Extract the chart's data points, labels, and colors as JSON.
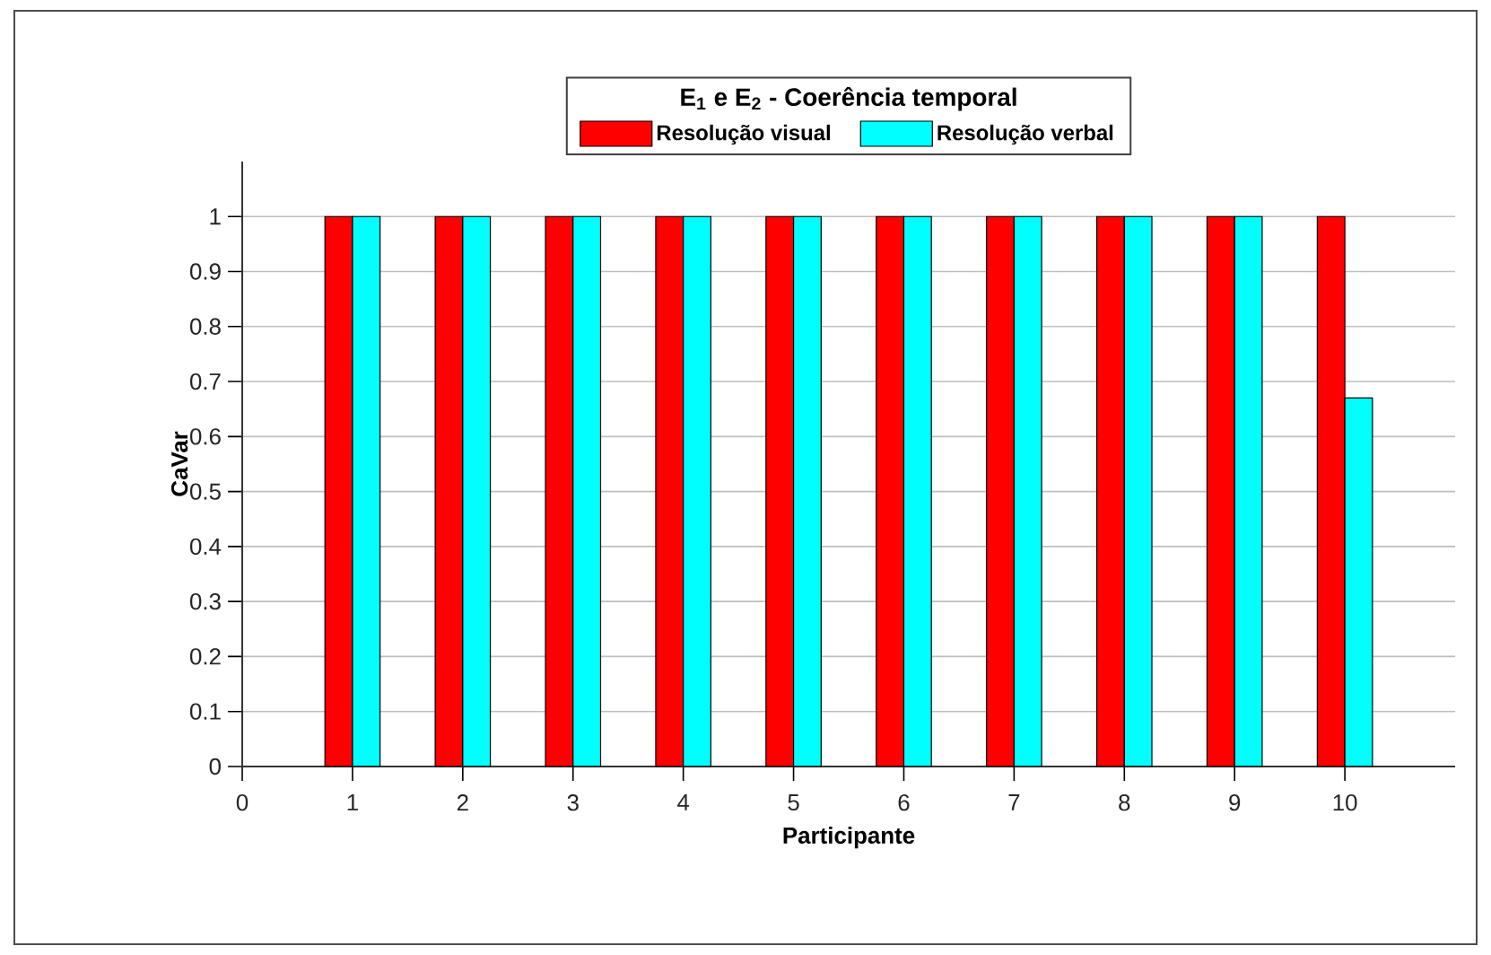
{
  "chart_data": {
    "type": "bar",
    "legend_title": "E$_{1}$ e E$_{2}$ - Coerência temporal",
    "xlabel": "Participante",
    "ylabel": "CaVar",
    "x": [
      1,
      2,
      3,
      4,
      5,
      6,
      7,
      8,
      9,
      10
    ],
    "series": [
      {
        "name": "Resolução visual",
        "color": "#ff0000",
        "values": [
          1,
          1,
          1,
          1,
          1,
          1,
          1,
          1,
          1,
          1
        ]
      },
      {
        "name": "Resolução verbal",
        "color": "#00ffff",
        "values": [
          1,
          1,
          1,
          1,
          1,
          1,
          1,
          1,
          1,
          0.67
        ]
      }
    ],
    "xlim": [
      0,
      11
    ],
    "xticks": [
      0,
      1,
      2,
      3,
      4,
      5,
      6,
      7,
      8,
      9,
      10
    ],
    "ylim": [
      0,
      1.1
    ],
    "yticks": [
      0,
      0.1,
      0.2,
      0.3,
      0.4,
      0.5,
      0.6,
      0.7,
      0.8,
      0.9,
      1
    ],
    "grid": "y",
    "legend": "top"
  }
}
